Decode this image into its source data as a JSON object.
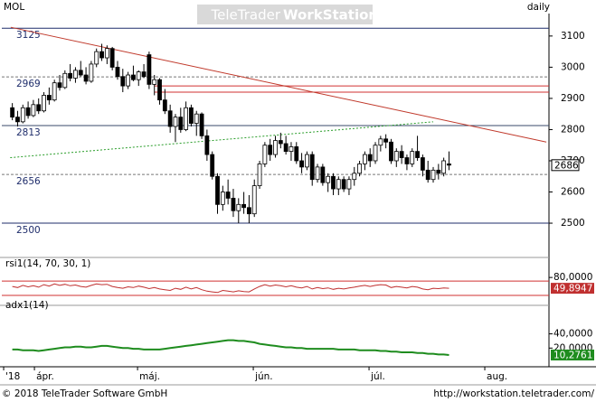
{
  "chart_data": [
    {
      "type": "candlestick",
      "title": "MOL",
      "interval": "daily",
      "watermark": [
        "TeleTrader",
        "WorkStation"
      ],
      "xlim": [
        -2,
        102
      ],
      "xticks": [
        {
          "value": -1.65,
          "label": "'18"
        },
        {
          "value": 4.2,
          "label": "ápr."
        },
        {
          "value": 23.8,
          "label": "máj."
        },
        {
          "value": 45.8,
          "label": "jún."
        },
        {
          "value": 67.8,
          "label": "júl."
        },
        {
          "value": 89.8,
          "label": "aug."
        }
      ],
      "ylim": [
        2448,
        3172
      ],
      "yticks": [
        2500,
        2600,
        2700,
        2800,
        2900,
        3000,
        3100
      ],
      "up_color": "#ffffff",
      "down_color": "#000000",
      "open": [
        2870,
        2840,
        2825,
        2870,
        2845,
        2880,
        2860,
        2910,
        2895,
        2950,
        2935,
        2980,
        2965,
        2990,
        2975,
        2955,
        3010,
        3050,
        3030,
        3060,
        3000,
        2970,
        2940,
        2975,
        2960,
        2985,
        3040,
        2945,
        2960,
        2895,
        2860,
        2810,
        2840,
        2800,
        2870,
        2820,
        2850,
        2780,
        2720,
        2650,
        2560,
        2600,
        2580,
        2540,
        2560,
        2550,
        2530,
        2620,
        2690,
        2750,
        2720,
        2765,
        2755,
        2730,
        2745,
        2700,
        2680,
        2720,
        2640,
        2680,
        2630,
        2650,
        2610,
        2640,
        2610,
        2640,
        2660,
        2690,
        2720,
        2700,
        2750,
        2770,
        2760,
        2700,
        2730,
        2710,
        2690,
        2730,
        2710,
        2670,
        2640,
        2670,
        2660,
        2690
      ],
      "high": [
        2885,
        2860,
        2880,
        2890,
        2895,
        2900,
        2920,
        2935,
        2960,
        2975,
        2990,
        3010,
        3000,
        3020,
        3000,
        3020,
        3060,
        3075,
        3070,
        3065,
        3020,
        2995,
        2985,
        3005,
        2990,
        3010,
        3050,
        2975,
        2965,
        2930,
        2880,
        2850,
        2870,
        2890,
        2880,
        2860,
        2855,
        2800,
        2730,
        2660,
        2620,
        2640,
        2610,
        2580,
        2600,
        2590,
        2640,
        2700,
        2760,
        2770,
        2780,
        2790,
        2780,
        2760,
        2760,
        2725,
        2730,
        2730,
        2690,
        2690,
        2660,
        2660,
        2650,
        2650,
        2650,
        2680,
        2700,
        2730,
        2740,
        2760,
        2780,
        2785,
        2770,
        2740,
        2750,
        2720,
        2740,
        2780,
        2720,
        2700,
        2680,
        2690,
        2710,
        2730
      ],
      "low": [
        2830,
        2810,
        2820,
        2835,
        2840,
        2850,
        2855,
        2880,
        2890,
        2925,
        2930,
        2955,
        2950,
        2970,
        2945,
        2950,
        3000,
        3020,
        3010,
        2990,
        2960,
        2920,
        2930,
        2955,
        2940,
        2965,
        2930,
        2910,
        2880,
        2850,
        2790,
        2760,
        2790,
        2795,
        2810,
        2780,
        2770,
        2700,
        2640,
        2530,
        2540,
        2560,
        2520,
        2500,
        2530,
        2500,
        2520,
        2610,
        2680,
        2700,
        2710,
        2740,
        2720,
        2700,
        2690,
        2660,
        2670,
        2620,
        2630,
        2620,
        2600,
        2590,
        2590,
        2600,
        2590,
        2620,
        2650,
        2670,
        2680,
        2690,
        2730,
        2740,
        2690,
        2680,
        2690,
        2670,
        2680,
        2700,
        2650,
        2630,
        2630,
        2640,
        2650,
        2670
      ],
      "close": [
        2840,
        2825,
        2870,
        2845,
        2880,
        2860,
        2910,
        2895,
        2950,
        2935,
        2980,
        2965,
        2990,
        2975,
        2955,
        3010,
        3050,
        3030,
        3060,
        3000,
        2970,
        2940,
        2975,
        2960,
        2985,
        2970,
        2945,
        2960,
        2895,
        2860,
        2810,
        2840,
        2800,
        2870,
        2820,
        2850,
        2780,
        2720,
        2650,
        2560,
        2600,
        2580,
        2540,
        2560,
        2550,
        2530,
        2620,
        2690,
        2750,
        2720,
        2765,
        2755,
        2730,
        2745,
        2700,
        2680,
        2720,
        2640,
        2680,
        2630,
        2650,
        2610,
        2640,
        2610,
        2640,
        2660,
        2690,
        2720,
        2700,
        2750,
        2770,
        2760,
        2700,
        2730,
        2710,
        2690,
        2730,
        2710,
        2670,
        2640,
        2670,
        2660,
        2700,
        2686
      ],
      "levels": [
        {
          "value": 3125,
          "label": "3125",
          "color": "#1f2d6b",
          "dash": false
        },
        {
          "value": 2969,
          "label": "2969",
          "color": "#777777",
          "dash": true
        },
        {
          "value": 2813,
          "label": "2813",
          "color": "#3a4a6b",
          "dash": false
        },
        {
          "value": 2656,
          "label": "2656",
          "color": "#777777",
          "dash": true
        },
        {
          "value": 2500,
          "label": "2500",
          "color": "#1f2d6b",
          "dash": false
        }
      ],
      "hlines": [
        {
          "value": 2940,
          "from": 27,
          "color": "#d03030"
        },
        {
          "value": 2920,
          "from": 27,
          "color": "#d03030"
        }
      ],
      "trendlines": [
        {
          "from": [
            -0.3,
            3128
          ],
          "to": [
            101.5,
            2760
          ],
          "color": "#c0392b",
          "dash": false
        },
        {
          "from": [
            -0.4,
            2710
          ],
          "to": [
            80,
            2825
          ],
          "color": "#2a9d2a",
          "dash": true
        }
      ]
    },
    {
      "type": "line",
      "title": "rsi1(14, 70, 30, 1)",
      "color": "#c03030",
      "ylim": [
        15,
        108
      ],
      "yticks": [
        {
          "value": 80,
          "label": "80,0000"
        }
      ],
      "levels": [
        {
          "value": 70,
          "color": "#d03030"
        },
        {
          "value": 30,
          "color": "#d03030"
        }
      ],
      "last_label": "49,8947",
      "values": [
        55,
        52,
        58,
        54,
        57,
        53,
        60,
        56,
        62,
        58,
        61,
        57,
        59,
        55,
        53,
        58,
        62,
        60,
        61,
        55,
        52,
        50,
        54,
        52,
        56,
        53,
        49,
        52,
        48,
        46,
        44,
        50,
        47,
        53,
        48,
        52,
        46,
        42,
        40,
        38,
        44,
        42,
        40,
        43,
        41,
        40,
        48,
        55,
        60,
        56,
        59,
        57,
        54,
        57,
        53,
        51,
        55,
        48,
        52,
        49,
        51,
        47,
        50,
        48,
        51,
        53,
        56,
        58,
        55,
        58,
        60,
        59,
        52,
        55,
        53,
        51,
        55,
        53,
        48,
        46,
        50,
        49,
        51,
        49.8947
      ]
    },
    {
      "type": "line",
      "title": "adx1(14)",
      "color": "#1e8c1e",
      "ylim": [
        -5,
        75
      ],
      "yticks": [
        {
          "value": 40,
          "label": "40,0000"
        },
        {
          "value": 20,
          "label": "20,0000"
        }
      ],
      "levels": [],
      "last_label": "10,2761",
      "values": [
        18,
        18,
        17,
        17,
        17,
        16,
        17,
        18,
        19,
        20,
        21,
        21,
        22,
        22,
        21,
        21,
        22,
        23,
        23,
        22,
        21,
        20,
        20,
        19,
        19,
        18,
        18,
        18,
        18,
        19,
        20,
        21,
        22,
        23,
        24,
        25,
        26,
        27,
        28,
        29,
        30,
        31,
        31,
        30,
        30,
        29,
        28,
        26,
        25,
        24,
        23,
        22,
        21,
        21,
        20,
        20,
        19,
        19,
        19,
        19,
        19,
        19,
        18,
        18,
        18,
        18,
        17,
        17,
        17,
        17,
        16,
        16,
        15,
        15,
        14,
        14,
        14,
        13,
        13,
        12,
        12,
        11,
        11,
        10.2761
      ]
    }
  ],
  "footer": {
    "left": "© 2018 TeleTrader Software GmbH",
    "right": "http://workstation.teletrader.com/"
  }
}
